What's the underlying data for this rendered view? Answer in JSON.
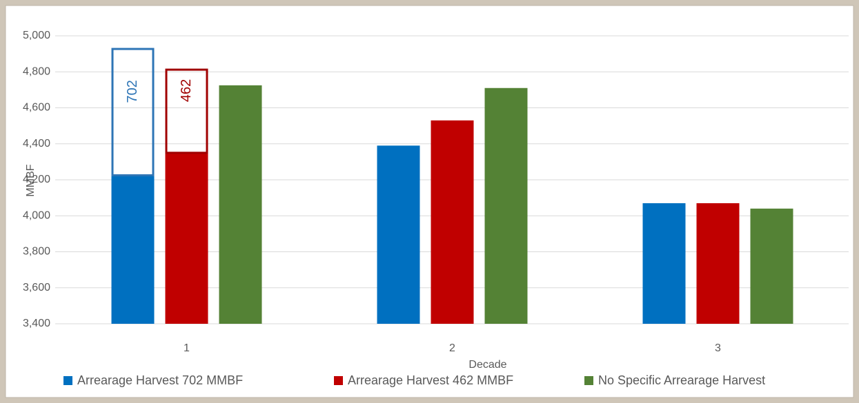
{
  "chart_data": {
    "type": "bar",
    "x_label": "Decade",
    "y_label": "MMBF",
    "categories": [
      "1",
      "2",
      "3"
    ],
    "series": [
      {
        "name": "Arrearage Harvest 702 MMBF",
        "color": "#0070c0",
        "outline_color": "#2e75b6",
        "values": [
          4225,
          4390,
          4070
        ],
        "extra": [
          702,
          null,
          null
        ]
      },
      {
        "name": "Arrearage Harvest 462 MMBF",
        "color": "#c00000",
        "outline_color": "#a00000",
        "values": [
          4350,
          4530,
          4070
        ],
        "extra": [
          462,
          null,
          null
        ]
      },
      {
        "name": "No Specific Arrearage Harvest",
        "color": "#548235",
        "values": [
          4725,
          4710,
          4040
        ]
      }
    ],
    "ylim": [
      3400,
      5000
    ],
    "yticks": [
      {
        "value": 3400,
        "label": "3,400"
      },
      {
        "value": 3600,
        "label": "3,600"
      },
      {
        "value": 3800,
        "label": "3,800"
      },
      {
        "value": 4000,
        "label": "4,000"
      },
      {
        "value": 4200,
        "label": "4,200"
      },
      {
        "value": 4400,
        "label": "4,400"
      },
      {
        "value": 4600,
        "label": "4,600"
      },
      {
        "value": 4800,
        "label": "4,800"
      },
      {
        "value": 5000,
        "label": "5,000"
      }
    ],
    "grid": true,
    "legend": "bottom"
  }
}
